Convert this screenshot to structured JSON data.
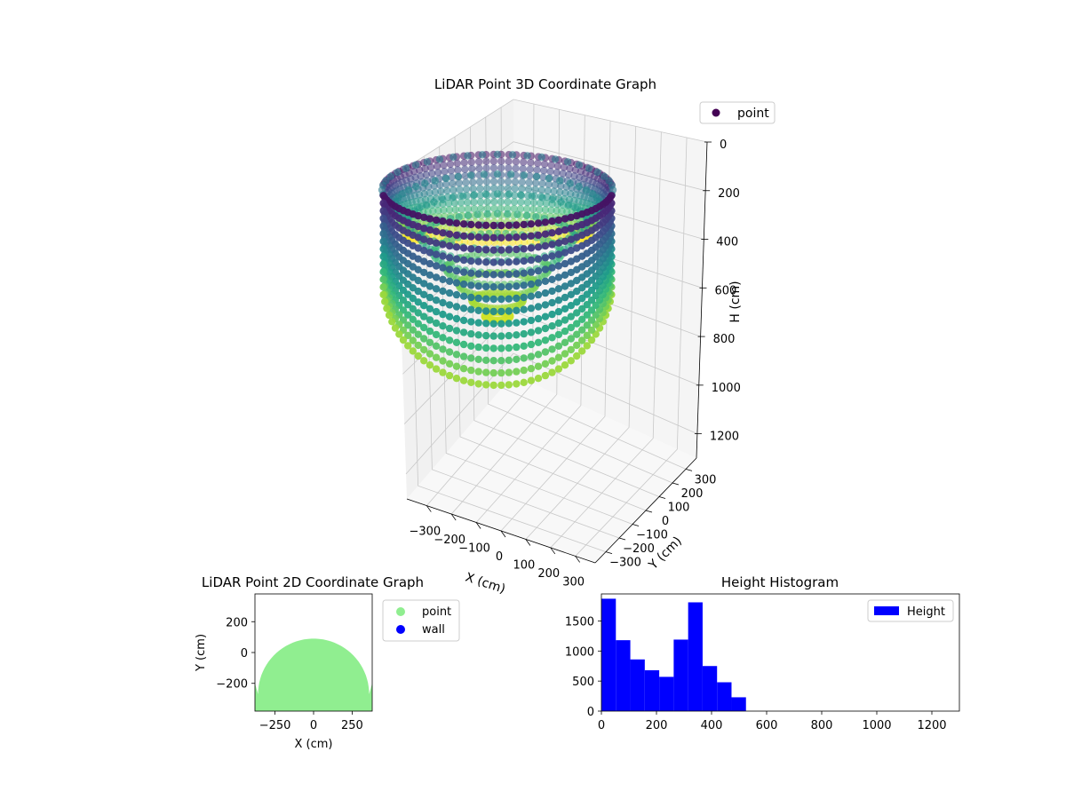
{
  "chart_data": [
    {
      "type": "scatter",
      "dimension": "3d",
      "title": "LiDAR Point 3D Coordinate Graph",
      "xlabel": "X (cm)",
      "ylabel": "Y (cm)",
      "zlabel": "H (cm)",
      "x_ticks": [
        -300,
        -200,
        -100,
        0,
        100,
        200,
        300
      ],
      "y_ticks": [
        -300,
        -200,
        -100,
        0,
        100,
        200,
        300
      ],
      "z_ticks": [
        0,
        200,
        400,
        600,
        800,
        1000,
        1200
      ],
      "xlim": [
        -380,
        380
      ],
      "ylim": [
        -380,
        380
      ],
      "zlim": [
        1300,
        0
      ],
      "z_inverted": true,
      "colormap": "viridis",
      "legend": {
        "entries": [
          "point"
        ],
        "position": "upper-right"
      },
      "grid": true,
      "shape": "half-dome of scan columns, radius ~360 cm, heights ~0-560 cm",
      "point_color": "#440154"
    },
    {
      "type": "scatter",
      "title": "LiDAR Point 2D Coordinate Graph",
      "xlabel": "X (cm)",
      "ylabel": "Y (cm)",
      "x_ticks": [
        -250,
        0,
        250
      ],
      "y_ticks": [
        -200,
        0,
        200
      ],
      "xlim": [
        -380,
        380
      ],
      "ylim": [
        -380,
        380
      ],
      "series": [
        {
          "name": "point",
          "color": "#90ee90",
          "region": "half-disc, y from -360 to ~90"
        },
        {
          "name": "wall",
          "color": "#0000ff"
        }
      ],
      "legend": {
        "position": "outside-right"
      }
    },
    {
      "type": "bar",
      "subtype": "histogram",
      "title": "Height Histogram",
      "legend": {
        "entries": [
          "Height"
        ],
        "position": "upper-right"
      },
      "color": "#0000ff",
      "bin_edges": [
        0,
        52.5,
        105,
        157.5,
        210,
        262.5,
        315,
        367.5,
        420,
        472.5,
        525
      ],
      "values": [
        1870,
        1180,
        860,
        680,
        570,
        1190,
        1810,
        750,
        480,
        230
      ],
      "xlim": [
        0,
        1300
      ],
      "ylim": [
        0,
        1950
      ],
      "x_ticks": [
        0,
        200,
        400,
        600,
        800,
        1000,
        1200
      ],
      "y_ticks": [
        0,
        500,
        1000,
        1500
      ]
    }
  ]
}
